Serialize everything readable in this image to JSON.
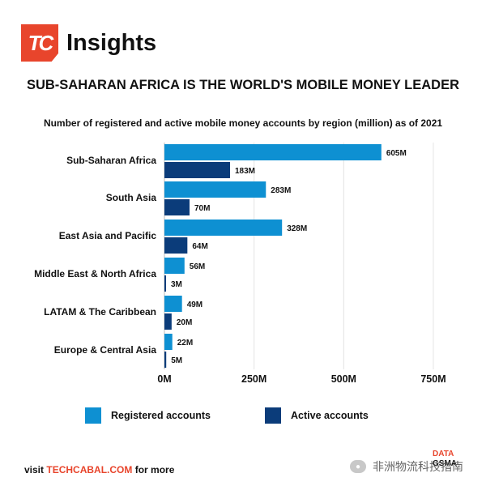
{
  "brand": {
    "logo_text": "TC",
    "name": "Insights"
  },
  "headline": "SUB-SAHARAN AFRICA IS THE WORLD'S MOBILE MONEY LEADER",
  "chart_data": {
    "type": "bar",
    "orientation": "horizontal",
    "title": "Number of registered and active mobile money accounts by region (million) as of 2021",
    "categories": [
      "Sub-Saharan Africa",
      "South Asia",
      "East Asia and Pacific",
      "Middle East & North Africa",
      "LATAM & The Caribbean",
      "Europe & Central Asia"
    ],
    "series": [
      {
        "name": "Registered accounts",
        "values": [
          605,
          283,
          328,
          56,
          49,
          22
        ],
        "labels": [
          "605M",
          "283M",
          "328M",
          "56M",
          "49M",
          "22M"
        ],
        "color": "#0e90d2"
      },
      {
        "name": "Active accounts",
        "values": [
          183,
          70,
          64,
          3,
          20,
          5
        ],
        "labels": [
          "183M",
          "70M",
          "64M",
          "3M",
          "20M",
          "5M"
        ],
        "color": "#0b3c7a"
      }
    ],
    "xlim": [
      0,
      750
    ],
    "xticks": [
      0,
      250,
      500,
      750
    ],
    "xtick_labels": [
      "0M",
      "250M",
      "500M",
      "750M"
    ],
    "grid": "vertical",
    "legend": "bottom"
  },
  "footer": {
    "prefix": "visit ",
    "site": "TECHCABAL.COM",
    "suffix": " for more"
  },
  "source": {
    "line1": "DATA",
    "line2": "GSMA"
  },
  "watermark": {
    "text": "非洲物流科技指南"
  }
}
